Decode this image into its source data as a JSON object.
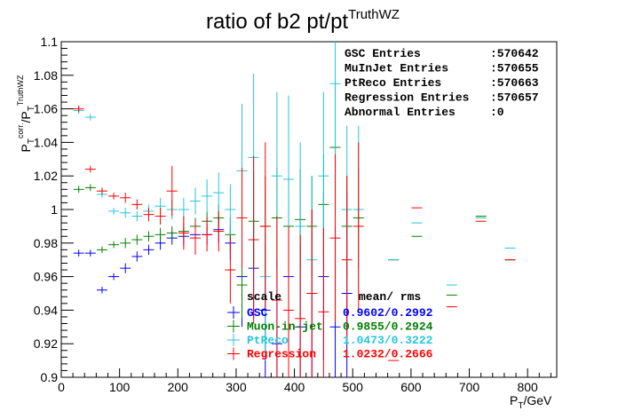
{
  "chart_data": {
    "type": "scatter",
    "title": "ratio of b2 pt/pt",
    "title_sup": "TruthWZ",
    "xlabel": "P",
    "xlabel_sub": "T",
    "xlabel_unit": "/GeV",
    "ylabel_num": "P",
    "ylabel_num_sub": "T",
    "ylabel_num_sup": "corr.",
    "ylabel_den": "/P",
    "ylabel_den_sub": "T",
    "ylabel_den_sup": "TruthWZ",
    "xlim": [
      0,
      850
    ],
    "ylim": [
      0.9,
      1.1
    ],
    "xticks": [
      0,
      100,
      200,
      300,
      400,
      500,
      600,
      700,
      800
    ],
    "yticks": [
      0.9,
      0.92,
      0.94,
      0.96,
      0.98,
      1.0,
      1.02,
      1.04,
      1.06,
      1.08,
      1.1
    ],
    "ytick_labels": [
      "0.9",
      "0.92",
      "0.94",
      "0.96",
      "0.98",
      "1",
      "1.02",
      "1.04",
      "1.06",
      "1.08",
      "1.1"
    ],
    "grid": false,
    "stats_box": [
      {
        "label": "GSC Entries",
        "value": ":570642"
      },
      {
        "label": "MuInJet Entries",
        "value": ":570655"
      },
      {
        "label": "PtReco Entries",
        "value": ":570663"
      },
      {
        "label": "Regression Entries",
        "value": ":570657"
      },
      {
        "label": "Abnormal Entries",
        "value": ":0"
      }
    ],
    "legend": {
      "header": {
        "name": "scale",
        "stat": "mean/   rms"
      },
      "rows": [
        {
          "name": "GSC",
          "stat": "0.9602/0.2992",
          "color": "#0000ff"
        },
        {
          "name": "Muon-in-jet",
          "stat": "0.9855/0.2924",
          "color": "#007f00"
        },
        {
          "name": "PtReco",
          "stat": "1.0473/0.3222",
          "color": "#26c6d9"
        },
        {
          "name": "Regression",
          "stat": "1.0232/0.2666",
          "color": "#ff0000"
        }
      ]
    },
    "series": [
      {
        "name": "GSC",
        "color": "#0000ff",
        "x": [
          30,
          50,
          70,
          90,
          110,
          130,
          150,
          170,
          190,
          210,
          230,
          250,
          270,
          290,
          310,
          330,
          350,
          370,
          390,
          410,
          430,
          450,
          470,
          490
        ],
        "y": [
          0.974,
          0.974,
          0.952,
          0.96,
          0.965,
          0.972,
          0.976,
          0.98,
          0.983,
          0.984,
          0.985,
          0.985,
          0.988,
          0.98,
          0.96,
          0.965,
          0.94,
          0.92,
          0.96,
          0.93,
          0.95,
          0.96,
          0.93,
          0.95
        ],
        "err": [
          0.002,
          0.002,
          0.002,
          0.002,
          0.003,
          0.003,
          0.003,
          0.004,
          0.004,
          0.005,
          0.005,
          0.006,
          0.008,
          0.01,
          0.03,
          0.03,
          0.04,
          0.05,
          0.05,
          0.05,
          0.05,
          0.05,
          0.06,
          0.06
        ]
      },
      {
        "name": "Muon-in-jet",
        "color": "#007f00",
        "x": [
          30,
          50,
          70,
          90,
          110,
          130,
          150,
          170,
          190,
          210,
          230,
          250,
          270,
          290,
          310,
          330,
          350,
          370,
          390,
          410,
          430,
          450,
          470,
          490,
          510,
          570,
          610,
          670,
          720,
          770
        ],
        "y": [
          1.012,
          1.013,
          0.976,
          0.979,
          0.98,
          0.982,
          0.984,
          0.985,
          0.986,
          0.987,
          0.99,
          0.993,
          0.995,
          0.985,
          0.955,
          0.993,
          0.99,
          0.995,
          0.99,
          0.994,
          0.99,
          1.003,
          1.037,
          0.99,
          0.995,
          0.97,
          0.984,
          0.949,
          0.996,
          0.97
        ],
        "err": [
          0.002,
          0.002,
          0.002,
          0.002,
          0.003,
          0.003,
          0.003,
          0.004,
          0.004,
          0.005,
          0.005,
          0.006,
          0.008,
          0.01,
          0.02,
          0.03,
          0.03,
          0.03,
          0.03,
          0.03,
          0.03,
          0.03,
          0.04,
          0.03,
          0.03,
          0.0,
          0.0,
          0.0,
          0.0,
          0.0
        ]
      },
      {
        "name": "PtReco",
        "color": "#26c6d9",
        "x": [
          30,
          50,
          70,
          90,
          110,
          130,
          150,
          170,
          190,
          210,
          230,
          250,
          270,
          290,
          310,
          330,
          350,
          370,
          390,
          410,
          430,
          450,
          470,
          490,
          510,
          570,
          610,
          670,
          720,
          770
        ],
        "y": [
          1.059,
          1.055,
          1.009,
          0.999,
          0.998,
          0.996,
          0.999,
          1.002,
          1.0,
          1.0,
          1.005,
          1.008,
          1.01,
          1.0,
          1.023,
          1.031,
          0.96,
          1.02,
          1.018,
          0.99,
          0.97,
          1.02,
          1.075,
          1.0,
          1.0,
          0.97,
          0.992,
          0.955,
          0.995,
          0.977
        ],
        "err": [
          0.002,
          0.002,
          0.002,
          0.002,
          0.003,
          0.003,
          0.004,
          0.005,
          0.006,
          0.007,
          0.008,
          0.01,
          0.012,
          0.015,
          0.04,
          0.05,
          0.05,
          0.05,
          0.05,
          0.05,
          0.05,
          0.05,
          0.08,
          0.05,
          0.05,
          0.0,
          0.0,
          0.0,
          0.0,
          0.0
        ]
      },
      {
        "name": "Regression",
        "color": "#ff0000",
        "x": [
          30,
          50,
          70,
          90,
          110,
          130,
          150,
          170,
          190,
          210,
          230,
          250,
          270,
          290,
          310,
          330,
          350,
          370,
          390,
          410,
          430,
          450,
          470,
          490,
          510,
          570,
          610,
          670,
          720,
          770
        ],
        "y": [
          1.06,
          1.024,
          1.011,
          1.008,
          1.007,
          1.003,
          0.997,
          0.996,
          1.011,
          0.986,
          0.983,
          0.985,
          0.987,
          0.964,
          0.995,
          0.982,
          0.99,
          0.946,
          0.94,
          0.935,
          0.95,
          0.939,
          0.983,
          0.97,
          0.99,
          0.91,
          1.001,
          0.942,
          0.993,
          0.97
        ],
        "err": [
          0.002,
          0.002,
          0.002,
          0.002,
          0.003,
          0.003,
          0.004,
          0.005,
          0.015,
          0.01,
          0.01,
          0.01,
          0.012,
          0.02,
          0.03,
          0.05,
          0.05,
          0.05,
          0.05,
          0.05,
          0.05,
          0.05,
          0.05,
          0.05,
          0.05,
          0.0,
          0.0,
          0.0,
          0.0,
          0.0
        ]
      }
    ]
  }
}
